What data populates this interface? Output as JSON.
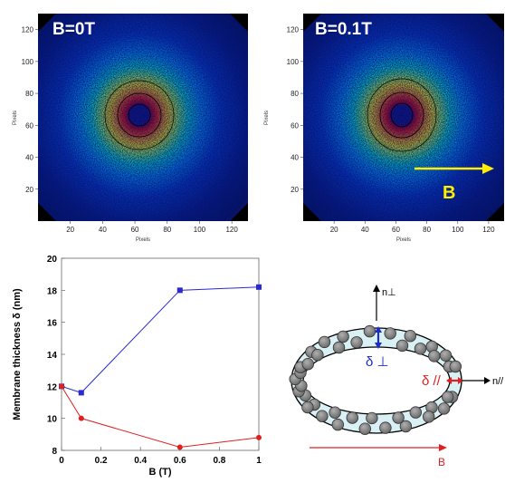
{
  "panels": {
    "left_map": {
      "label": "B=0T",
      "xlabel": "Pixels",
      "ylabel": "Pixels"
    },
    "right_map": {
      "label": "B=0.1T",
      "xlabel": "Pixels",
      "ylabel": "Pixels",
      "arrow_label": "B"
    },
    "map_axes": {
      "xticks": [
        "20",
        "40",
        "60",
        "80",
        "100",
        "120"
      ],
      "yticks": [
        "20",
        "40",
        "60",
        "80",
        "100",
        "120"
      ],
      "range": [
        0,
        130
      ]
    }
  },
  "chart_data": {
    "type": "line",
    "title": "",
    "xlabel": "B (T)",
    "ylabel": "Membrane thickness δ (nm)",
    "xlim": [
      0,
      1
    ],
    "ylim": [
      8,
      20
    ],
    "xticks": [
      "0",
      "0.2",
      "0.4",
      "0.6",
      "0.8",
      "1"
    ],
    "yticks": [
      "8",
      "10",
      "12",
      "14",
      "16",
      "18",
      "20"
    ],
    "grid": false,
    "series": [
      {
        "color": "#2a2ad0",
        "marker": "square",
        "x": [
          0,
          0.1,
          0.6,
          1
        ],
        "y": [
          12.0,
          11.6,
          18.0,
          18.2
        ]
      },
      {
        "color": "#e02020",
        "marker": "circle",
        "x": [
          0,
          0.1,
          0.6,
          1
        ],
        "y": [
          12.0,
          10.0,
          8.2,
          8.8
        ]
      }
    ]
  },
  "diagram": {
    "n_perp": "n⊥",
    "n_par": "n//",
    "delta_perp": "δ ⊥",
    "delta_par": "δ //",
    "b_label": "B",
    "colors": {
      "perp": "#1c2cc8",
      "par": "#e02020",
      "membrane": "#d9f0f4",
      "bead": "#8a8a8a"
    }
  }
}
